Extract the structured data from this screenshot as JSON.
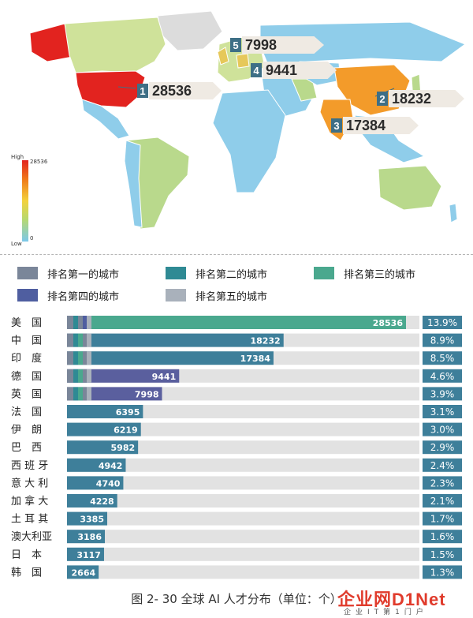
{
  "map": {
    "scale": {
      "high_label": "High",
      "low_label": "Low",
      "max_value": "28536",
      "min_value": "0"
    },
    "pins": [
      {
        "rank": "1",
        "value": "28536"
      },
      {
        "rank": "2",
        "value": "18232"
      },
      {
        "rank": "3",
        "value": "17384"
      },
      {
        "rank": "4",
        "value": "9441"
      },
      {
        "rank": "5",
        "value": "7998"
      }
    ]
  },
  "legend": {
    "items": [
      {
        "label": "排名第一的城市",
        "color": "#7a8699"
      },
      {
        "label": "排名第二的城市",
        "color": "#2f8a94"
      },
      {
        "label": "排名第三的城市",
        "color": "#4aa88e"
      },
      {
        "label": "排名第四的城市",
        "color": "#4f5ea0"
      },
      {
        "label": "排名第五的城市",
        "color": "#a9b1bb"
      }
    ]
  },
  "chart_data": {
    "type": "bar",
    "categories": [
      "美　国",
      "中　国",
      "印　度",
      "德　国",
      "英　国",
      "法　国",
      "伊　朗",
      "巴　西",
      "西 班 牙",
      "意 大 利",
      "加 拿 大",
      "土 耳 其",
      "澳大利亚",
      "日　本",
      "韩　国"
    ],
    "values": [
      28536,
      18232,
      17384,
      9441,
      7998,
      6395,
      6219,
      5982,
      4942,
      4740,
      4228,
      3385,
      3186,
      3117,
      2664
    ],
    "percent_labels": [
      "13.9%",
      "8.9%",
      "8.5%",
      "4.6%",
      "3.9%",
      "3.1%",
      "3.0%",
      "2.9%",
      "2.4%",
      "2.3%",
      "2.1%",
      "1.7%",
      "1.6%",
      "1.5%",
      "1.3%"
    ],
    "xlim": [
      0,
      30000
    ],
    "colors": {
      "track": "#e2e2e2",
      "pct_box": "#3e7f9a",
      "default_bar": "#3e7f9a",
      "usa_bar": "#4aa88e",
      "de_uk_bar": "#5a5f9e"
    }
  },
  "caption": "图 2- 30  全球 AI 人才分布（单位：个）",
  "watermark": {
    "main": "企业网D1Net",
    "sub": "企业IT第1门户"
  }
}
